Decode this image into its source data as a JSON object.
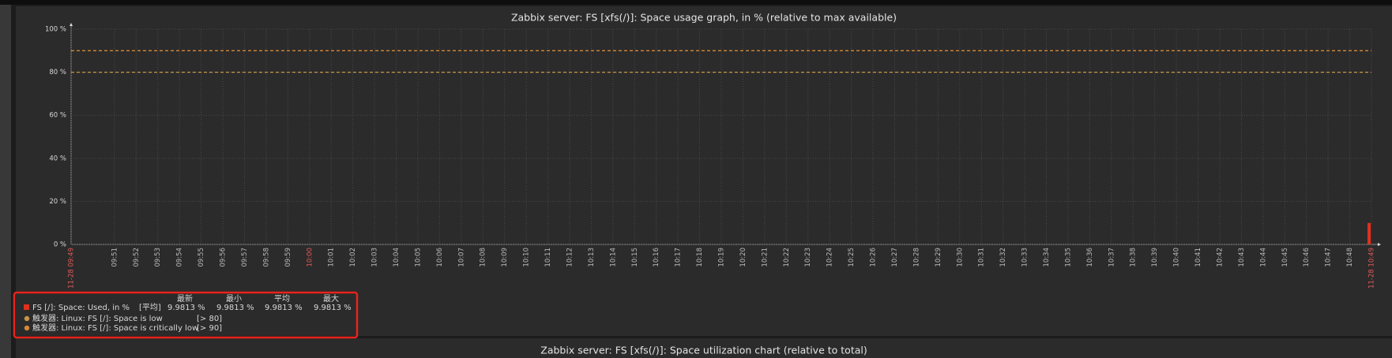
{
  "chart_data": {
    "type": "bar",
    "title": "Zabbix server: FS [xfs(/)]: Space usage graph, in % (relative to max available)",
    "xlim": [
      "11-28 09:49",
      "11-28 10:49"
    ],
    "xticks": [
      "11-28 09:49",
      "09:51",
      "09:52",
      "09:53",
      "09:54",
      "09:55",
      "09:56",
      "09:57",
      "09:58",
      "09:59",
      "10:00",
      "10:01",
      "10:02",
      "10:03",
      "10:04",
      "10:05",
      "10:06",
      "10:07",
      "10:08",
      "10:09",
      "10:10",
      "10:11",
      "10:12",
      "10:13",
      "10:14",
      "10:15",
      "10:16",
      "10:17",
      "10:18",
      "10:19",
      "10:20",
      "10:21",
      "10:22",
      "10:23",
      "10:24",
      "10:25",
      "10:26",
      "10:27",
      "10:28",
      "10:29",
      "10:30",
      "10:31",
      "10:32",
      "10:33",
      "10:34",
      "10:35",
      "10:36",
      "10:37",
      "10:38",
      "10:39",
      "10:40",
      "10:41",
      "10:42",
      "10:43",
      "10:44",
      "10:45",
      "10:46",
      "10:47",
      "10:48",
      "11-28 10:49"
    ],
    "xtick_color": "#bbbbbb",
    "xtick_highlight_color": "#e05a5a",
    "ylim": [
      0,
      100
    ],
    "yticks": [
      {
        "value": 0,
        "label": "0 %"
      },
      {
        "value": 20,
        "label": "20 %"
      },
      {
        "value": 40,
        "label": "40 %"
      },
      {
        "value": 60,
        "label": "60 %"
      },
      {
        "value": 80,
        "label": "80 %"
      },
      {
        "value": 100,
        "label": "100 %"
      }
    ],
    "grid": true,
    "series": [
      {
        "name": "FS [/]: Space: Used, in %",
        "color": "#e0301e",
        "function": "[平均]",
        "x": [
          "11-28 10:49"
        ],
        "values": [
          9.9813
        ],
        "stats": [
          {
            "value": 9.9813,
            "label": "9.9813 %"
          },
          {
            "value": 9.9813,
            "label": "9.9813 %"
          },
          {
            "value": 9.9813,
            "label": "9.9813 %"
          },
          {
            "value": 9.9813,
            "label": "9.9813 %"
          }
        ]
      }
    ],
    "stat_columns": [
      "最新",
      "最小",
      "平均",
      "最大"
    ],
    "triggers": [
      {
        "name": "触发器: Linux: FS [/]: Space is low",
        "condition": "[> 80]",
        "value": 80,
        "color": "#c89648"
      },
      {
        "name": "触发器: Linux: FS [/]: Space is critically low",
        "condition": "[> 90]",
        "value": 90,
        "color": "#d8883a"
      }
    ]
  },
  "next_chart": {
    "title": "Zabbix server: FS [xfs(/)]: Space utilization chart (relative to total)"
  }
}
